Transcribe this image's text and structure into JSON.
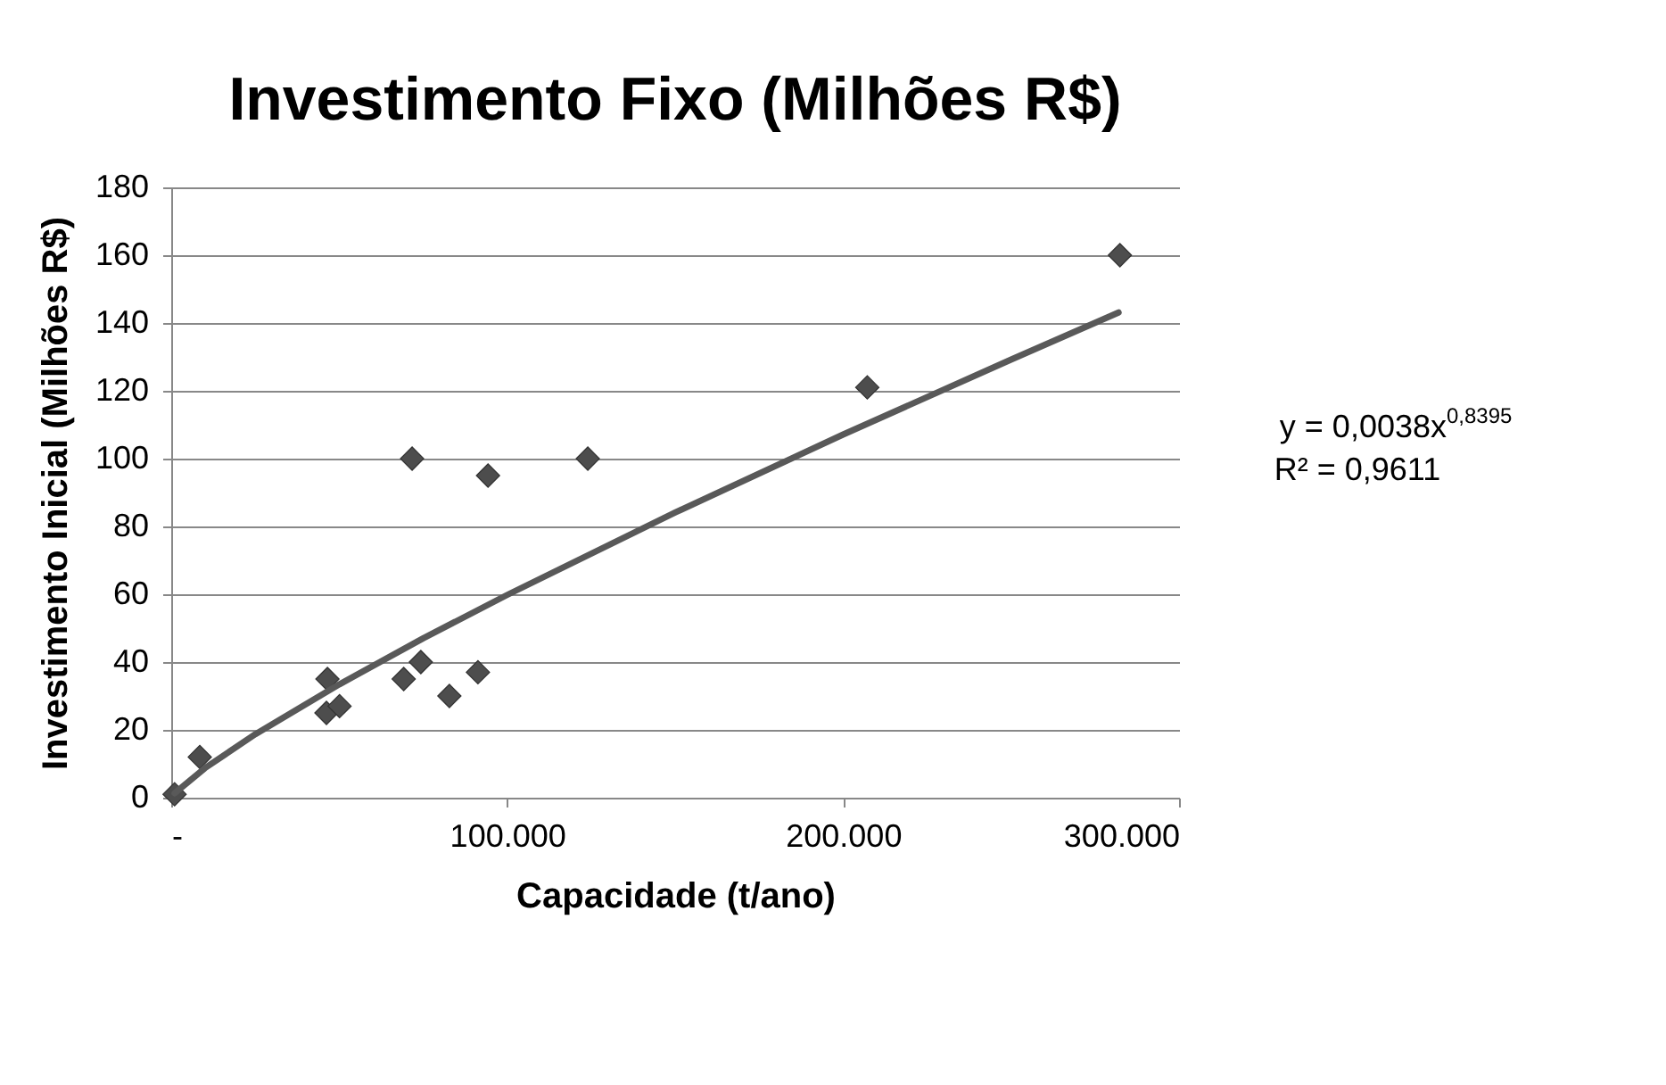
{
  "chart_data": {
    "type": "scatter",
    "title": "Investimento Fixo (Milhões R$)",
    "xlabel": "Capacidade (t/ano)",
    "ylabel": "Investimento Inicial  (Milhões R$)",
    "series": [
      {
        "color": "#4d4d4d",
        "marker": "diamond",
        "x": [
          1000,
          8500,
          46500,
          46200,
          50100,
          69200,
          74300,
          82800,
          91300,
          71700,
          94300,
          124000,
          207200,
          282400
        ],
        "values": [
          1,
          12,
          35,
          25,
          27,
          35,
          40,
          30,
          37,
          100,
          95,
          100,
          121,
          160
        ]
      },
      {
        "type": "line",
        "color": "#595959",
        "line_style": "solid",
        "marker": "none",
        "x": [
          1000,
          10000,
          25000,
          50000,
          75000,
          100000,
          150000,
          200000,
          250000,
          282000
        ],
        "values": [
          1.3,
          8.7,
          18.7,
          33.4,
          47.0,
          59.8,
          84.1,
          107.1,
          129.2,
          143.1
        ]
      }
    ],
    "xlim": [
      0,
      300000
    ],
    "xticks": [
      {
        "value": 0,
        "label": "-"
      },
      {
        "value": 100000,
        "label": "100.000"
      },
      {
        "value": 200000,
        "label": "200.000"
      },
      {
        "value": 300000,
        "label": "300.000"
      }
    ],
    "ylim": [
      0,
      180
    ],
    "yticks": [
      0,
      20,
      40,
      60,
      80,
      100,
      120,
      140,
      160,
      180
    ],
    "grid": "y",
    "annotations": [
      "y = 0,0038x$^{0,8395}$",
      "R² = 0,9611"
    ]
  }
}
